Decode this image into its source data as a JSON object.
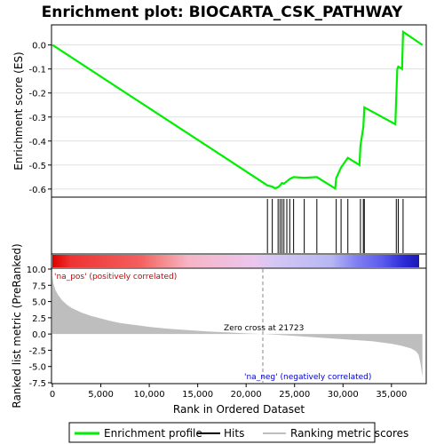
{
  "title": "Enrichment plot: BIOCARTA_CSK_PATHWAY",
  "top_ylabel": "Enrichment score (ES)",
  "bottom_ylabel": "Ranked list metric (PreRanked)",
  "xlabel": "Rank in Ordered Dataset",
  "pos_label": "'na_pos' (positively correlated)",
  "neg_label": "'na_neg' (negatively correlated)",
  "zero_cross_label": "Zero cross at 21723",
  "legend": {
    "enrichment_profile": "Enrichment profile",
    "hits": "Hits",
    "ranking_metric": "Ranking metric scores"
  },
  "colors": {
    "enrichment_line": "#00ee00",
    "hit_line": "#000000",
    "metric_fill": "#bebebe",
    "pos_text": "#cc0000",
    "neg_text": "#0000cc"
  },
  "chart_data": [
    {
      "type": "line",
      "name": "enrichment-score",
      "ylabel": "Enrichment score (ES)",
      "xlim": [
        0,
        38500
      ],
      "ylim": [
        -0.63,
        0.08
      ],
      "yticks": [
        0.0,
        -0.1,
        -0.2,
        -0.3,
        -0.4,
        -0.5,
        -0.6
      ],
      "ytick_labels": [
        "0.0",
        "-0.1",
        "-0.2",
        "-0.3",
        "-0.4",
        "-0.5",
        "-0.6"
      ],
      "grid": true,
      "x": [
        0,
        22200,
        22700,
        23000,
        23300,
        23500,
        23700,
        23900,
        24200,
        24500,
        24900,
        26000,
        27300,
        29200,
        29300,
        29800,
        30500,
        31700,
        31800,
        32100,
        32200,
        35400,
        35500,
        35600,
        35700,
        36100,
        36200,
        38200
      ],
      "y": [
        0.0,
        -0.585,
        -0.59,
        -0.597,
        -0.592,
        -0.585,
        -0.575,
        -0.578,
        -0.568,
        -0.558,
        -0.55,
        -0.553,
        -0.55,
        -0.598,
        -0.555,
        -0.51,
        -0.47,
        -0.5,
        -0.42,
        -0.34,
        -0.26,
        -0.33,
        -0.21,
        -0.1,
        -0.09,
        -0.1,
        0.055,
        0.0
      ]
    },
    {
      "type": "hits",
      "name": "hits",
      "x": [
        22200,
        22700,
        23300,
        23500,
        23700,
        23900,
        24200,
        24500,
        24900,
        26000,
        27300,
        29300,
        29800,
        30500,
        31800,
        32100,
        32200,
        35500,
        35700,
        36200
      ]
    },
    {
      "type": "area",
      "name": "ranking-metric",
      "ylabel": "Ranked list metric (PreRanked)",
      "xlim": [
        0,
        38500
      ],
      "ylim": [
        -7.5,
        10.0
      ],
      "yticks": [
        10.0,
        7.5,
        5.0,
        2.5,
        0.0,
        -2.5,
        -5.0,
        -7.5
      ],
      "ytick_labels": [
        "10.0",
        "7.5",
        "5.0",
        "2.5",
        "0.0",
        "-2.5",
        "-5.0",
        "-7.5"
      ],
      "xticks": [
        0,
        5000,
        10000,
        15000,
        20000,
        25000,
        30000,
        35000
      ],
      "xtick_labels": [
        "0",
        "5,000",
        "10,000",
        "15,000",
        "20,000",
        "25,000",
        "30,000",
        "35,000"
      ],
      "x": [
        0,
        100,
        300,
        600,
        1000,
        1500,
        2000,
        3000,
        4000,
        5000,
        6000,
        7000,
        8000,
        9000,
        10000,
        12000,
        14000,
        16000,
        18000,
        20000,
        21723,
        23000,
        25000,
        27000,
        29000,
        31000,
        33000,
        35000,
        36000,
        37000,
        37500,
        37800,
        38000,
        38200
      ],
      "y": [
        9.0,
        7.8,
        6.8,
        6.0,
        5.2,
        4.5,
        4.0,
        3.3,
        2.8,
        2.4,
        2.0,
        1.7,
        1.5,
        1.3,
        1.1,
        0.8,
        0.6,
        0.4,
        0.25,
        0.1,
        0.0,
        -0.1,
        -0.3,
        -0.5,
        -0.7,
        -0.9,
        -1.1,
        -1.5,
        -1.8,
        -2.2,
        -2.6,
        -3.2,
        -4.5,
        -6.6
      ],
      "zero_cross": 21723
    }
  ]
}
